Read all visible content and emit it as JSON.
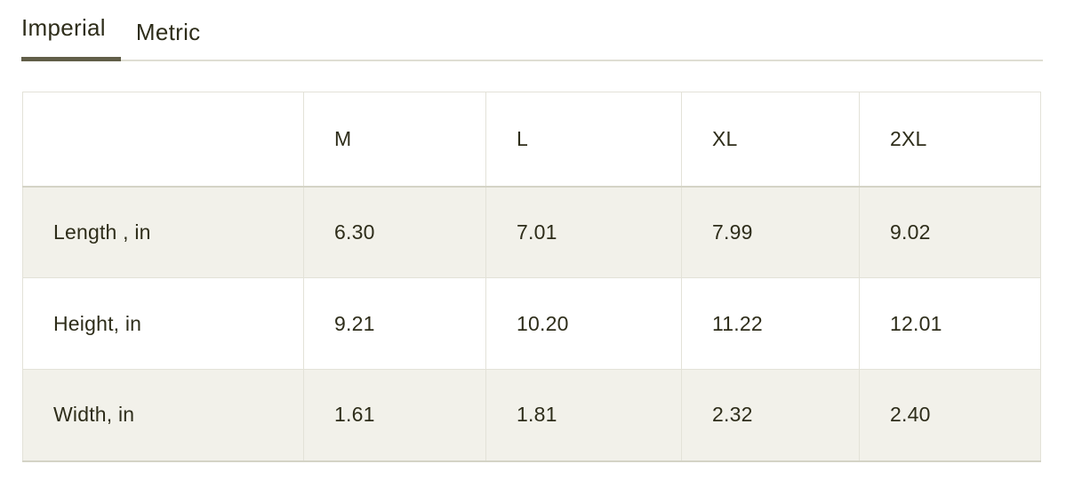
{
  "tabs": [
    {
      "label": "Imperial",
      "active": true
    },
    {
      "label": "Metric",
      "active": false
    }
  ],
  "table": {
    "columns": [
      "",
      "M",
      "L",
      "XL",
      "2XL"
    ],
    "rows": [
      {
        "label": "Length , in",
        "values": [
          "6.30",
          "7.01",
          "7.99",
          "9.02"
        ]
      },
      {
        "label": "Height, in",
        "values": [
          "9.21",
          "10.20",
          "11.22",
          "12.01"
        ]
      },
      {
        "label": "Width, in",
        "values": [
          "1.61",
          "1.81",
          "2.32",
          "2.40"
        ]
      }
    ]
  },
  "colors": {
    "text": "#2e2d1a",
    "active_tab_underline": "#615e48",
    "inactive_tab_line": "#dfded3",
    "table_border": "#e3e2d8",
    "row_alt_background": "#f2f1ea",
    "background": "#ffffff"
  }
}
